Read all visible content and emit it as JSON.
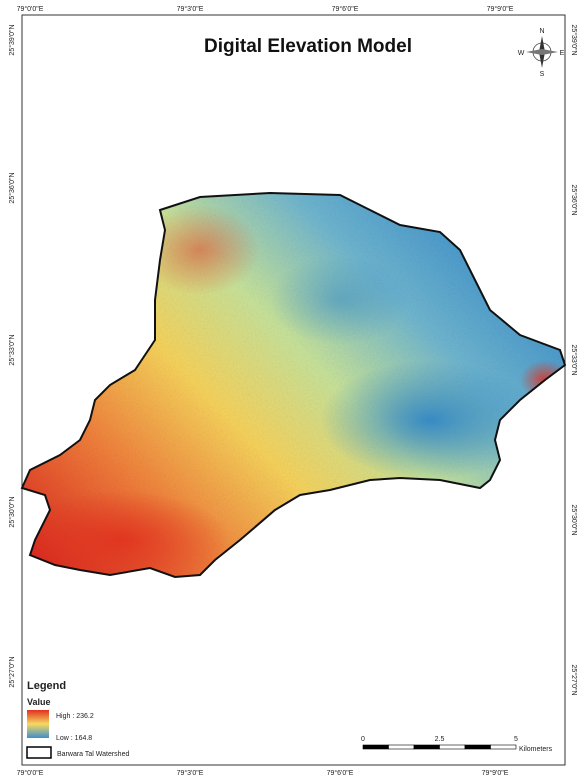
{
  "title": "Digital Elevation Model",
  "longitude_labels": [
    "79°0'0\"E",
    "79°3'0\"E",
    "79°6'0\"E",
    "79°9'0\"E"
  ],
  "latitude_labels": [
    "25°39'0\"N",
    "25°36'0\"N",
    "25°33'0\"N",
    "25°30'0\"N",
    "25°27'0\"N"
  ],
  "north_arrow": {
    "n": "N",
    "e": "E",
    "s": "S",
    "w": "W"
  },
  "legend": {
    "title": "Legend",
    "subtitle": "Value",
    "high": "High : 236.2",
    "low": "Low : 164.8",
    "boundary": "Barwara Tal Watershed"
  },
  "scale_bar": {
    "ticks": [
      0,
      2.5,
      5
    ],
    "unit": "Kilometers"
  }
}
